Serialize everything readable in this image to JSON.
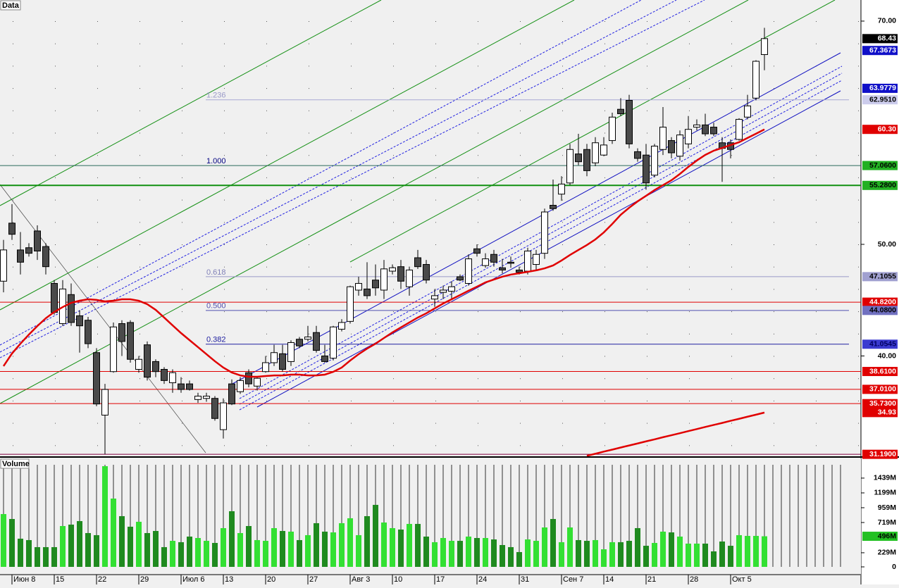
{
  "chart_data": [
    {
      "type": "candlestick",
      "title": "Data",
      "categories": [
        null,
        "Июн 8",
        null,
        null,
        null,
        null,
        "15",
        null,
        null,
        null,
        null,
        "22",
        null,
        null,
        null,
        null,
        "29",
        null,
        null,
        null,
        null,
        "Июл 6",
        null,
        null,
        null,
        null,
        "13",
        null,
        null,
        null,
        null,
        "20",
        null,
        null,
        null,
        null,
        "27",
        null,
        null,
        null,
        null,
        "Авг 3",
        null,
        null,
        null,
        null,
        "10",
        null,
        null,
        null,
        null,
        "17",
        null,
        null,
        null,
        null,
        "24",
        null,
        null,
        null,
        null,
        "31",
        null,
        null,
        null,
        null,
        "Сен 7",
        null,
        null,
        null,
        null,
        "14",
        null,
        null,
        null,
        null,
        "21",
        null,
        null,
        null,
        null,
        "28",
        null,
        null,
        null,
        null,
        "Окт 5",
        null,
        null,
        null,
        null
      ],
      "open": [
        46.7,
        51.9,
        49.5,
        49.7,
        51.2,
        49.8,
        46.5,
        42.9,
        45.5,
        43.6,
        43.2,
        40.3,
        34.7,
        38.6,
        42.9,
        43.0,
        38.8,
        41.0,
        39.5,
        38.8,
        37.6,
        37.5,
        37.5,
        36.1,
        36.2,
        36.2,
        33.4,
        37.5,
        36.8,
        38.5,
        37.3,
        38.6,
        39.4,
        40.2,
        39.5,
        41.5,
        41.5,
        42.1,
        40.0,
        39.8,
        42.4,
        43.1,
        45.9,
        46.0,
        46.8,
        45.9,
        47.6,
        48.0,
        46.2,
        48.8,
        48.2,
        45.1,
        45.7,
        45.8,
        47.1,
        46.5,
        49.6,
        48.1,
        49.1,
        47.9,
        48.4,
        47.7,
        47.6,
        48.2,
        49.2,
        53.5,
        54.5,
        55.5,
        58.1,
        58.5,
        57.3,
        58.0,
        59.3,
        62.1,
        62.9,
        58.3,
        58.0,
        56.2,
        58.5,
        59.3,
        57.9,
        59.0,
        60.5,
        60.7,
        60.5,
        59.1,
        59.1,
        59.4,
        61.4,
        63.1,
        67.0
      ],
      "high": [
        50.4,
        53.6,
        51.1,
        50.1,
        51.7,
        50.1,
        46.8,
        46.8,
        46.5,
        44.1,
        43.5,
        40.7,
        37.5,
        43.0,
        43.2,
        43.2,
        40.0,
        41.3,
        39.7,
        39.0,
        38.8,
        38.1,
        37.8,
        36.7,
        36.7,
        36.4,
        36.2,
        37.9,
        38.1,
        38.8,
        38.1,
        40.0,
        41.0,
        41.0,
        41.4,
        41.7,
        42.7,
        42.7,
        41.0,
        42.7,
        43.3,
        46.3,
        47.1,
        48.4,
        48.2,
        48.6,
        48.2,
        48.6,
        48.0,
        49.5,
        48.6,
        46.0,
        46.3,
        46.7,
        47.3,
        49.1,
        50.0,
        49.2,
        49.5,
        48.7,
        48.9,
        48.0,
        49.7,
        49.5,
        53.2,
        55.8,
        56.1,
        59.0,
        59.9,
        59.0,
        59.6,
        59.6,
        61.8,
        63.1,
        63.4,
        58.6,
        59.0,
        59.0,
        62.3,
        59.6,
        60.2,
        61.5,
        61.2,
        61.7,
        60.9,
        59.6,
        59.4,
        61.3,
        63.4,
        66.5,
        69.4
      ],
      "low": [
        45.7,
        50.4,
        47.3,
        48.9,
        48.6,
        47.3,
        43.7,
        42.7,
        42.7,
        40.3,
        40.7,
        35.5,
        31.2,
        38.5,
        40.0,
        39.4,
        38.5,
        37.8,
        38.1,
        37.5,
        36.7,
        36.7,
        36.9,
        35.8,
        35.9,
        34.2,
        32.6,
        35.6,
        36.6,
        37.2,
        36.9,
        38.5,
        39.1,
        38.6,
        39.1,
        40.7,
        41.3,
        40.3,
        39.4,
        39.6,
        42.2,
        42.9,
        45.4,
        45.1,
        45.4,
        45.1,
        47.3,
        46.0,
        45.4,
        47.8,
        46.5,
        44.4,
        45.1,
        45.1,
        46.7,
        46.3,
        48.9,
        47.9,
        48.0,
        47.4,
        47.9,
        47.3,
        47.3,
        47.6,
        48.7,
        53.0,
        53.9,
        55.3,
        57.1,
        56.1,
        57.0,
        57.9,
        59.0,
        61.5,
        58.6,
        57.4,
        54.9,
        56.0,
        58.0,
        57.7,
        57.5,
        58.6,
        60.2,
        59.7,
        59.7,
        55.6,
        57.7,
        59.3,
        61.2,
        62.9,
        65.6
      ],
      "close": [
        49.5,
        50.9,
        48.4,
        49.2,
        49.4,
        48.0,
        43.9,
        46.0,
        43.0,
        42.7,
        41.1,
        35.7,
        37.0,
        42.6,
        41.3,
        39.7,
        39.7,
        38.1,
        38.6,
        37.8,
        38.5,
        37.0,
        37.0,
        36.4,
        36.4,
        34.4,
        35.8,
        35.7,
        37.8,
        37.5,
        38.0,
        39.4,
        40.3,
        38.8,
        41.2,
        40.9,
        41.7,
        40.5,
        39.5,
        42.6,
        43.0,
        46.2,
        46.5,
        45.4,
        46.1,
        47.8,
        47.9,
        46.7,
        47.7,
        48.0,
        46.8,
        45.4,
        45.9,
        46.2,
        46.8,
        48.7,
        49.2,
        48.7,
        48.4,
        47.7,
        48.3,
        47.5,
        49.4,
        49.1,
        52.9,
        53.2,
        55.4,
        58.5,
        57.4,
        56.6,
        59.1,
        58.9,
        61.4,
        61.7,
        59.0,
        57.7,
        55.5,
        58.8,
        60.5,
        58.2,
        59.8,
        60.3,
        60.7,
        59.9,
        59.9,
        58.6,
        58.5,
        61.2,
        62.4,
        66.4,
        68.43
      ],
      "up_color": "#ffffff",
      "down_color": "#4a4a4a",
      "overlays": [
        {
          "color": "#e00000",
          "values": [
            39.09,
            40.22,
            41.1,
            41.92,
            42.68,
            43.38,
            43.94,
            44.38,
            44.76,
            44.95,
            45.08,
            45.02,
            44.89,
            44.95,
            45.08,
            45.08,
            44.95,
            44.64,
            44.13,
            43.44,
            42.74,
            42.05,
            41.42,
            40.79,
            40.16,
            39.53,
            38.96,
            38.52,
            38.26,
            38.14,
            38.14,
            38.2,
            38.26,
            38.26,
            38.33,
            38.33,
            38.26,
            38.26,
            38.33,
            38.58,
            38.96,
            39.59,
            40.16,
            40.66,
            41.1,
            41.61,
            42.11,
            42.56,
            43.0,
            43.44,
            43.82,
            44.26,
            44.7,
            45.08,
            45.46,
            45.84,
            46.21,
            46.59,
            46.85,
            47.1,
            47.29,
            47.41,
            47.54,
            47.67,
            47.85,
            48.11,
            48.55,
            49.05,
            49.5,
            49.94,
            50.44,
            51.07,
            51.83,
            52.65,
            53.28,
            53.85,
            54.35,
            54.86,
            55.3,
            55.74,
            56.31,
            56.94,
            57.51,
            58.01,
            58.39,
            58.64,
            58.9,
            59.15,
            59.53,
            59.91,
            60.3
          ]
        },
        {
          "color": "#e00000",
          "values": [
            null,
            null,
            null,
            null,
            null,
            null,
            null,
            null,
            null,
            null,
            null,
            null,
            null,
            null,
            null,
            null,
            null,
            null,
            null,
            null,
            null,
            null,
            null,
            null,
            null,
            null,
            null,
            null,
            null,
            null,
            null,
            null,
            null,
            null,
            null,
            null,
            null,
            null,
            null,
            null,
            null,
            null,
            null,
            null,
            null,
            null,
            null,
            null,
            null,
            null,
            null,
            null,
            null,
            null,
            null,
            null,
            null,
            null,
            null,
            null,
            null,
            null,
            null,
            null,
            null,
            null,
            null,
            null,
            null,
            31.06,
            31.24,
            31.43,
            31.61,
            31.8,
            31.98,
            32.16,
            32.35,
            32.53,
            32.72,
            32.9,
            33.08,
            33.27,
            33.45,
            33.64,
            33.82,
            34.0,
            34.19,
            34.37,
            34.56,
            34.74,
            34.93
          ]
        }
      ],
      "levels": [
        {
          "value": 68.43,
          "label": "68.43",
          "bg": "#000000",
          "fg": "#ffffff"
        },
        {
          "value": 67.3673,
          "label": "67.3673",
          "bg": "#1010c8",
          "fg": "#ffffff"
        },
        {
          "value": 63.9779,
          "label": "63.9779",
          "bg": "#1010c8",
          "fg": "#ffffff"
        },
        {
          "value": 62.951,
          "label": "62.9510",
          "bg": "#ccccec",
          "fg": "#000000",
          "line": "partial",
          "line_color": "#a8a8d4",
          "fib": "1.236",
          "fib_color": "#9a9ac8"
        },
        {
          "value": 60.3,
          "label": "60.30",
          "bg": "#e00000",
          "fg": "#ffffff"
        },
        {
          "value": 57.06,
          "label": "57.0600",
          "bg": "#22b022",
          "fg": "#000000",
          "line": "full",
          "line_color": "#2a6a5a",
          "fib": "1.000",
          "fib_color": "#000080"
        },
        {
          "value": 55.28,
          "label": "55.2800",
          "bg": "#22b022",
          "fg": "#000000",
          "line": "full",
          "line_color": "#109010"
        },
        {
          "value": 47.1055,
          "label": "47.1055",
          "bg": "#a0a0d0",
          "fg": "#000000",
          "line": "partial",
          "line_color": "#9a9ac8",
          "fib": "0.618",
          "fib_color": "#8080b8"
        },
        {
          "value": 44.82,
          "label": "44.8200",
          "bg": "#e00000",
          "fg": "#ffffff",
          "line": "full",
          "line_color": "#e00000"
        },
        {
          "value": 44.08,
          "label": "44.0800",
          "bg": "#7070c0",
          "fg": "#000000",
          "line": "partial",
          "line_color": "#5050b0",
          "fib": "0.500",
          "fib_color": "#5050b0"
        },
        {
          "value": 41.0545,
          "label": "41.0545",
          "bg": "#3a3ad0",
          "fg": "#000060",
          "line": "partial",
          "line_color": "#2020a0",
          "fib": "0.382",
          "fib_color": "#2020a0"
        },
        {
          "value": 38.61,
          "label": "38.6100",
          "bg": "#e00000",
          "fg": "#ffffff",
          "line": "full",
          "line_color": "#e00000"
        },
        {
          "value": 37.01,
          "label": "37.0100",
          "bg": "#e00000",
          "fg": "#ffffff",
          "line": "full",
          "line_color": "#e00000"
        },
        {
          "value": 35.73,
          "label": "35.7300",
          "bg": "#e00000",
          "fg": "#ffffff",
          "line": "full",
          "line_color": "#e00000"
        },
        {
          "value": 34.93,
          "label": "34.93",
          "bg": "#e00000",
          "fg": "#ffffff"
        },
        {
          "value": 31.19,
          "label": "31.1900",
          "bg": "#e00000",
          "fg": "#ffffff",
          "line": "full",
          "line_color": "#800040"
        }
      ],
      "ylim": [
        31.01,
        71.89
      ],
      "yticks": [
        {
          "value": 40,
          "label": "40.00"
        },
        {
          "value": 50,
          "label": "50.00"
        },
        {
          "value": 70,
          "label": "70.00"
        }
      ]
    },
    {
      "type": "bar",
      "title": "Volume",
      "values": [
        856,
        776,
        457,
        434,
        320,
        320,
        320,
        662,
        685,
        742,
        548,
        514,
        1632,
        1107,
        822,
        651,
        731,
        548,
        582,
        320,
        422,
        400,
        491,
        468,
        422,
        388,
        628,
        902,
        548,
        662,
        434,
        422,
        628,
        582,
        571,
        434,
        514,
        708,
        571,
        559,
        708,
        788,
        514,
        822,
        1005,
        719,
        628,
        605,
        696,
        696,
        491,
        400,
        468,
        422,
        422,
        491,
        468,
        468,
        445,
        354,
        320,
        240,
        445,
        422,
        639,
        776,
        400,
        639,
        434,
        422,
        434,
        285,
        400,
        400,
        422,
        628,
        342,
        388,
        571,
        559,
        491,
        377,
        377,
        377,
        251,
        411,
        342,
        514,
        502,
        502,
        496
      ],
      "up_color": "#33e033",
      "down_color": "#1f8a1f",
      "last_value": {
        "value": 496,
        "label": "496M",
        "bg": "#22c022"
      },
      "ylim": [
        0,
        1655
      ],
      "yticks": [
        0,
        {
          "value": 229,
          "label": "229M"
        },
        {
          "value": 719,
          "label": "719M"
        },
        {
          "value": 959,
          "label": "959M"
        },
        {
          "value": 1199,
          "label": "1199M"
        },
        {
          "value": 1439,
          "label": "1439M"
        }
      ]
    }
  ]
}
